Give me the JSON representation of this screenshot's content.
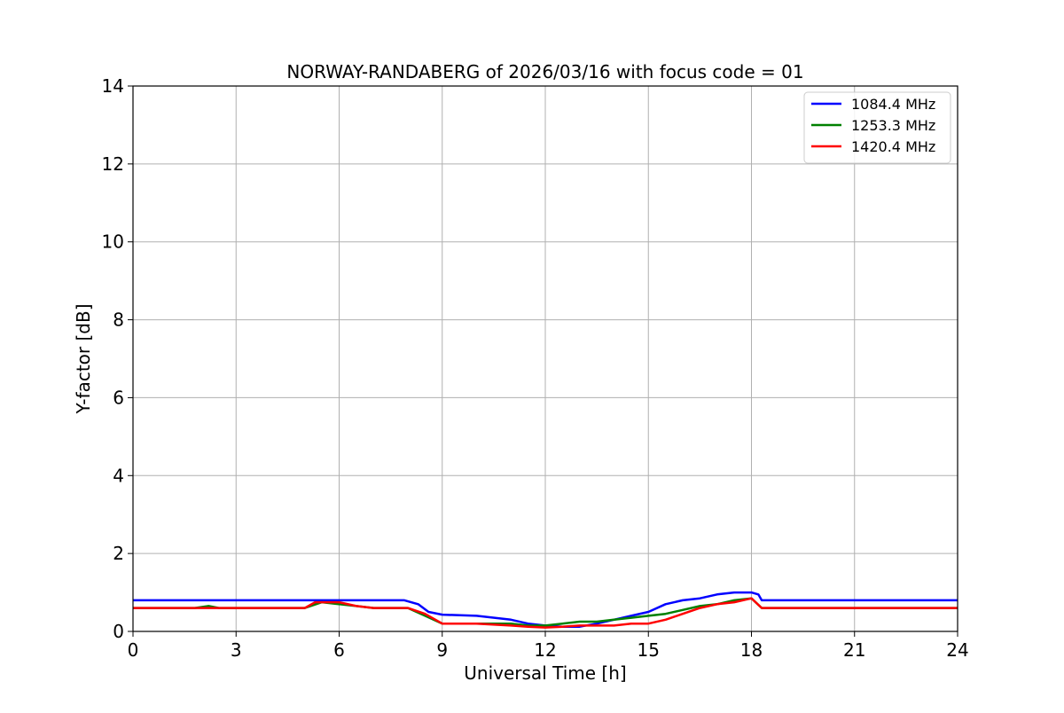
{
  "chart_data": {
    "type": "line",
    "title": "NORWAY-RANDABERG of 2026/03/16 with focus code = 01",
    "xlabel": "Universal Time [h]",
    "ylabel": "Y-factor [dB]",
    "xlim": [
      0,
      24
    ],
    "ylim": [
      0,
      14
    ],
    "xticks": [
      0,
      3,
      6,
      9,
      12,
      15,
      18,
      21,
      24
    ],
    "yticks": [
      0,
      2,
      4,
      6,
      8,
      10,
      12,
      14
    ],
    "grid": true,
    "legend_position": "top-right",
    "series": [
      {
        "name": "1084.4 MHz",
        "color": "#0000ff",
        "x": [
          0,
          5,
          7.9,
          8.3,
          8.6,
          9,
          10,
          11,
          11.5,
          12,
          12.5,
          13,
          13.5,
          14,
          14.5,
          15,
          15.5,
          16,
          16.5,
          17,
          17.5,
          18,
          18.2,
          18.3,
          21,
          24
        ],
        "y": [
          0.8,
          0.8,
          0.8,
          0.7,
          0.5,
          0.43,
          0.4,
          0.3,
          0.2,
          0.15,
          0.12,
          0.12,
          0.2,
          0.3,
          0.4,
          0.5,
          0.7,
          0.8,
          0.85,
          0.95,
          1.0,
          1.0,
          0.95,
          0.8,
          0.8,
          0.8
        ]
      },
      {
        "name": "1253.3 MHz",
        "color": "#008000",
        "x": [
          0,
          1.8,
          2.2,
          2.5,
          5,
          5.5,
          6,
          6.5,
          7,
          8,
          8.5,
          9,
          10,
          11,
          11.5,
          12,
          12.5,
          13,
          13.5,
          14,
          14.5,
          15,
          15.5,
          16,
          16.5,
          17,
          17.5,
          18,
          18.3,
          21,
          24
        ],
        "y": [
          0.6,
          0.6,
          0.65,
          0.6,
          0.6,
          0.75,
          0.7,
          0.65,
          0.6,
          0.6,
          0.4,
          0.2,
          0.2,
          0.2,
          0.15,
          0.15,
          0.2,
          0.25,
          0.25,
          0.3,
          0.35,
          0.4,
          0.45,
          0.55,
          0.65,
          0.7,
          0.8,
          0.85,
          0.6,
          0.6,
          0.6
        ]
      },
      {
        "name": "1420.4 MHz",
        "color": "#ff0000",
        "x": [
          0,
          5,
          5.3,
          6,
          6.5,
          7,
          8,
          8.5,
          9,
          10,
          11,
          11.5,
          12,
          12.5,
          13,
          13.5,
          14,
          14.5,
          15,
          15.5,
          16,
          16.5,
          17,
          17.5,
          18,
          18.3,
          21,
          24
        ],
        "y": [
          0.6,
          0.6,
          0.75,
          0.75,
          0.65,
          0.6,
          0.6,
          0.45,
          0.2,
          0.2,
          0.15,
          0.12,
          0.1,
          0.12,
          0.15,
          0.15,
          0.15,
          0.2,
          0.2,
          0.3,
          0.45,
          0.6,
          0.7,
          0.75,
          0.85,
          0.6,
          0.6,
          0.6
        ]
      }
    ]
  }
}
